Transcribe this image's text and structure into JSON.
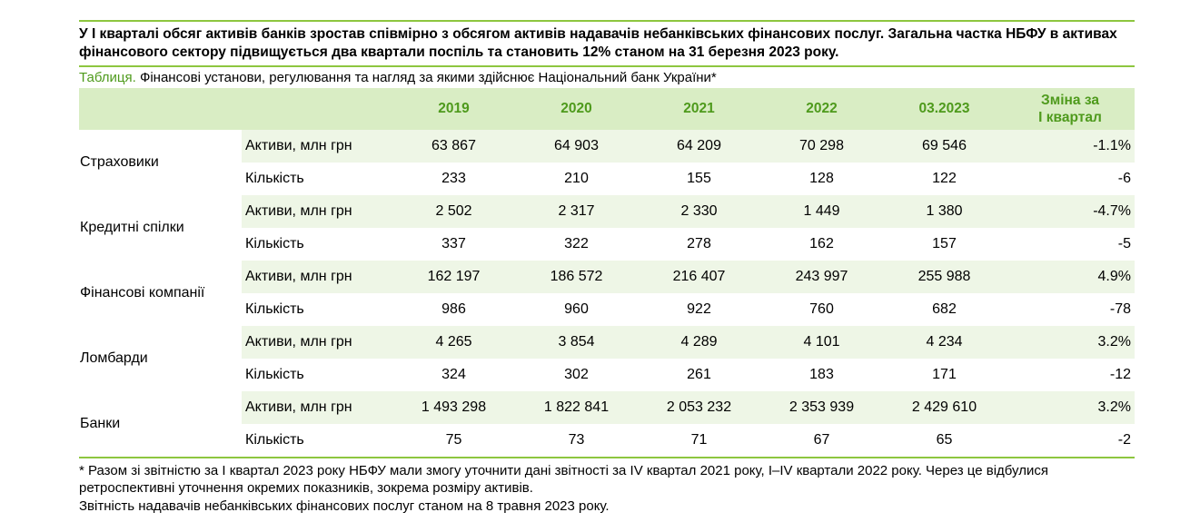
{
  "lead_text": "У І кварталі обсяг активів банків зростав співмірно з обсягом активів надавачів небанківських фінансових послуг. Загальна частка НБФУ в активах фінансового сектору підвищується два квартали поспіль та становить 12% станом на 31 березня 2023 року.",
  "caption": {
    "label": "Таблиця.",
    "text": "Фінансові установи, регулювання та нагляд за якими здійснює Національний банк України*"
  },
  "table": {
    "columns": [
      "2019",
      "2020",
      "2021",
      "2022",
      "03.2023"
    ],
    "change_header_line1": "Зміна за",
    "change_header_line2": "І квартал",
    "groups": [
      {
        "name": "Страховики",
        "rows": [
          {
            "indicator": "Активи, млн грн",
            "values": [
              "63 867",
              "64 903",
              "64 209",
              "70 298",
              "69 546"
            ],
            "change": "-1.1%"
          },
          {
            "indicator": "Кількість",
            "values": [
              "233",
              "210",
              "155",
              "128",
              "122"
            ],
            "change": "-6"
          }
        ]
      },
      {
        "name": "Кредитні спілки",
        "rows": [
          {
            "indicator": "Активи, млн грн",
            "values": [
              "2 502",
              "2 317",
              "2 330",
              "1 449",
              "1 380"
            ],
            "change": "-4.7%"
          },
          {
            "indicator": "Кількість",
            "values": [
              "337",
              "322",
              "278",
              "162",
              "157"
            ],
            "change": "-5"
          }
        ]
      },
      {
        "name": "Фінансові компанії",
        "rows": [
          {
            "indicator": "Активи, млн грн",
            "values": [
              "162 197",
              "186 572",
              "216 407",
              "243 997",
              "255 988"
            ],
            "change": "4.9%"
          },
          {
            "indicator": "Кількість",
            "values": [
              "986",
              "960",
              "922",
              "760",
              "682"
            ],
            "change": "-78"
          }
        ]
      },
      {
        "name": "Ломбарди",
        "rows": [
          {
            "indicator": "Активи, млн грн",
            "values": [
              "4 265",
              "3 854",
              "4 289",
              "4 101",
              "4 234"
            ],
            "change": "3.2%"
          },
          {
            "indicator": "Кількість",
            "values": [
              "324",
              "302",
              "261",
              "183",
              "171"
            ],
            "change": "-12"
          }
        ]
      },
      {
        "name": "Банки",
        "rows": [
          {
            "indicator": "Активи, млн грн",
            "values": [
              "1 493 298",
              "1 822 841",
              "2 053 232",
              "2 353 939",
              "2 429 610"
            ],
            "change": "3.2%"
          },
          {
            "indicator": "Кількість",
            "values": [
              "75",
              "73",
              "71",
              "67",
              "65"
            ],
            "change": "-2"
          }
        ]
      }
    ]
  },
  "footnote_1": "* Разом зі звітністю за І квартал 2023 року НБФУ мали змогу уточнити дані звітності за IV квартал 2021 року, І–IV квартали 2022 року. Через це відбулися ретроспективні уточнення окремих показників, зокрема розміру активів.",
  "footnote_2": "Звітність надавачів небанківських фінансових послуг станом на 8 травня 2023 року."
}
